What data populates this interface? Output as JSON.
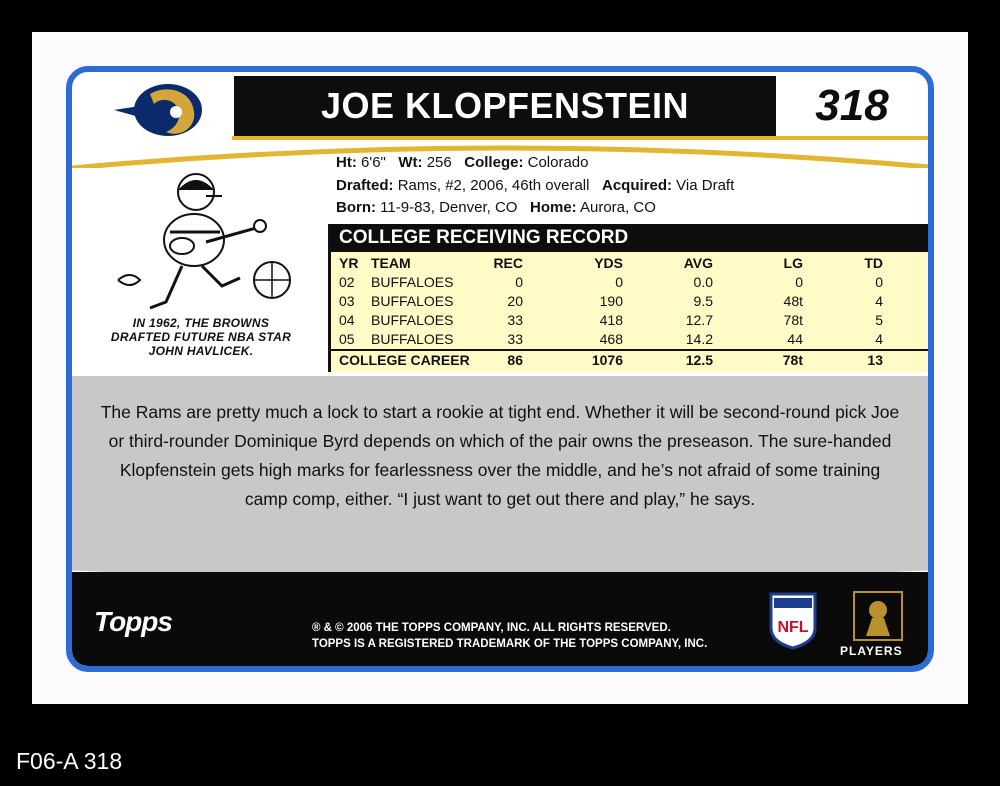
{
  "card": {
    "player_name": "JOE KLOPFENSTEIN",
    "card_number": "318"
  },
  "bio": {
    "ht_label": "Ht:",
    "ht_value": "6'6\"",
    "wt_label": "Wt:",
    "wt_value": "256",
    "college_label": "College:",
    "college_value": "Colorado",
    "drafted_label": "Drafted:",
    "drafted_value": "Rams, #2, 2006, 46th overall",
    "acquired_label": "Acquired:",
    "acquired_value": "Via Draft",
    "born_label": "Born:",
    "born_value": "11-9-83, Denver, CO",
    "home_label": "Home:",
    "home_value": "Aurora, CO"
  },
  "trivia": {
    "line1": "IN 1962, THE BROWNS",
    "line2": "DRAFTED FUTURE NBA STAR",
    "line3": "JOHN HAVLICEK."
  },
  "stats": {
    "title": "COLLEGE RECEIVING RECORD",
    "headers": [
      "YR",
      "TEAM",
      "REC",
      "YDS",
      "AVG",
      "LG",
      "TD"
    ],
    "rows": [
      [
        "02",
        "BUFFALOES",
        "0",
        "0",
        "0.0",
        "0",
        "0"
      ],
      [
        "03",
        "BUFFALOES",
        "20",
        "190",
        "9.5",
        "48t",
        "4"
      ],
      [
        "04",
        "BUFFALOES",
        "33",
        "418",
        "12.7",
        "78t",
        "5"
      ],
      [
        "05",
        "BUFFALOES",
        "33",
        "468",
        "14.2",
        "44",
        "4"
      ]
    ],
    "career": [
      "COLLEGE CAREER",
      "86",
      "1076",
      "12.5",
      "78t",
      "13"
    ]
  },
  "blurb": {
    "text": "The Rams are pretty much a lock to start a rookie at tight end. Whether it will be second-round pick Joe or third-rounder Dominique Byrd depends on which of the pair owns the preseason. The sure-handed Klopfenstein gets high marks for fearlessness over the middle, and he’s not afraid of some training camp comp, either. “I just want to get out there and play,” he says."
  },
  "footer": {
    "topps": "Topps",
    "copyright_line1": "® & © 2006 THE TOPPS COMPANY, INC.  ALL RIGHTS RESERVED.",
    "copyright_line2": "TOPPS IS A REGISTERED TRADEMARK OF THE TOPPS COMPANY, INC.",
    "nfl": "NFL",
    "players": "PLAYERS"
  },
  "caption": "F06-A 318",
  "colors": {
    "frame_blue": "#2f6bd6",
    "gold": "#e3b532",
    "stats_yellow": "#fefbc6",
    "gray_panel": "#c8c8c8"
  },
  "icons": [
    "rams-helmet-logo",
    "cartoon-football-player",
    "nfl-shield-icon",
    "players-inc-logo"
  ]
}
